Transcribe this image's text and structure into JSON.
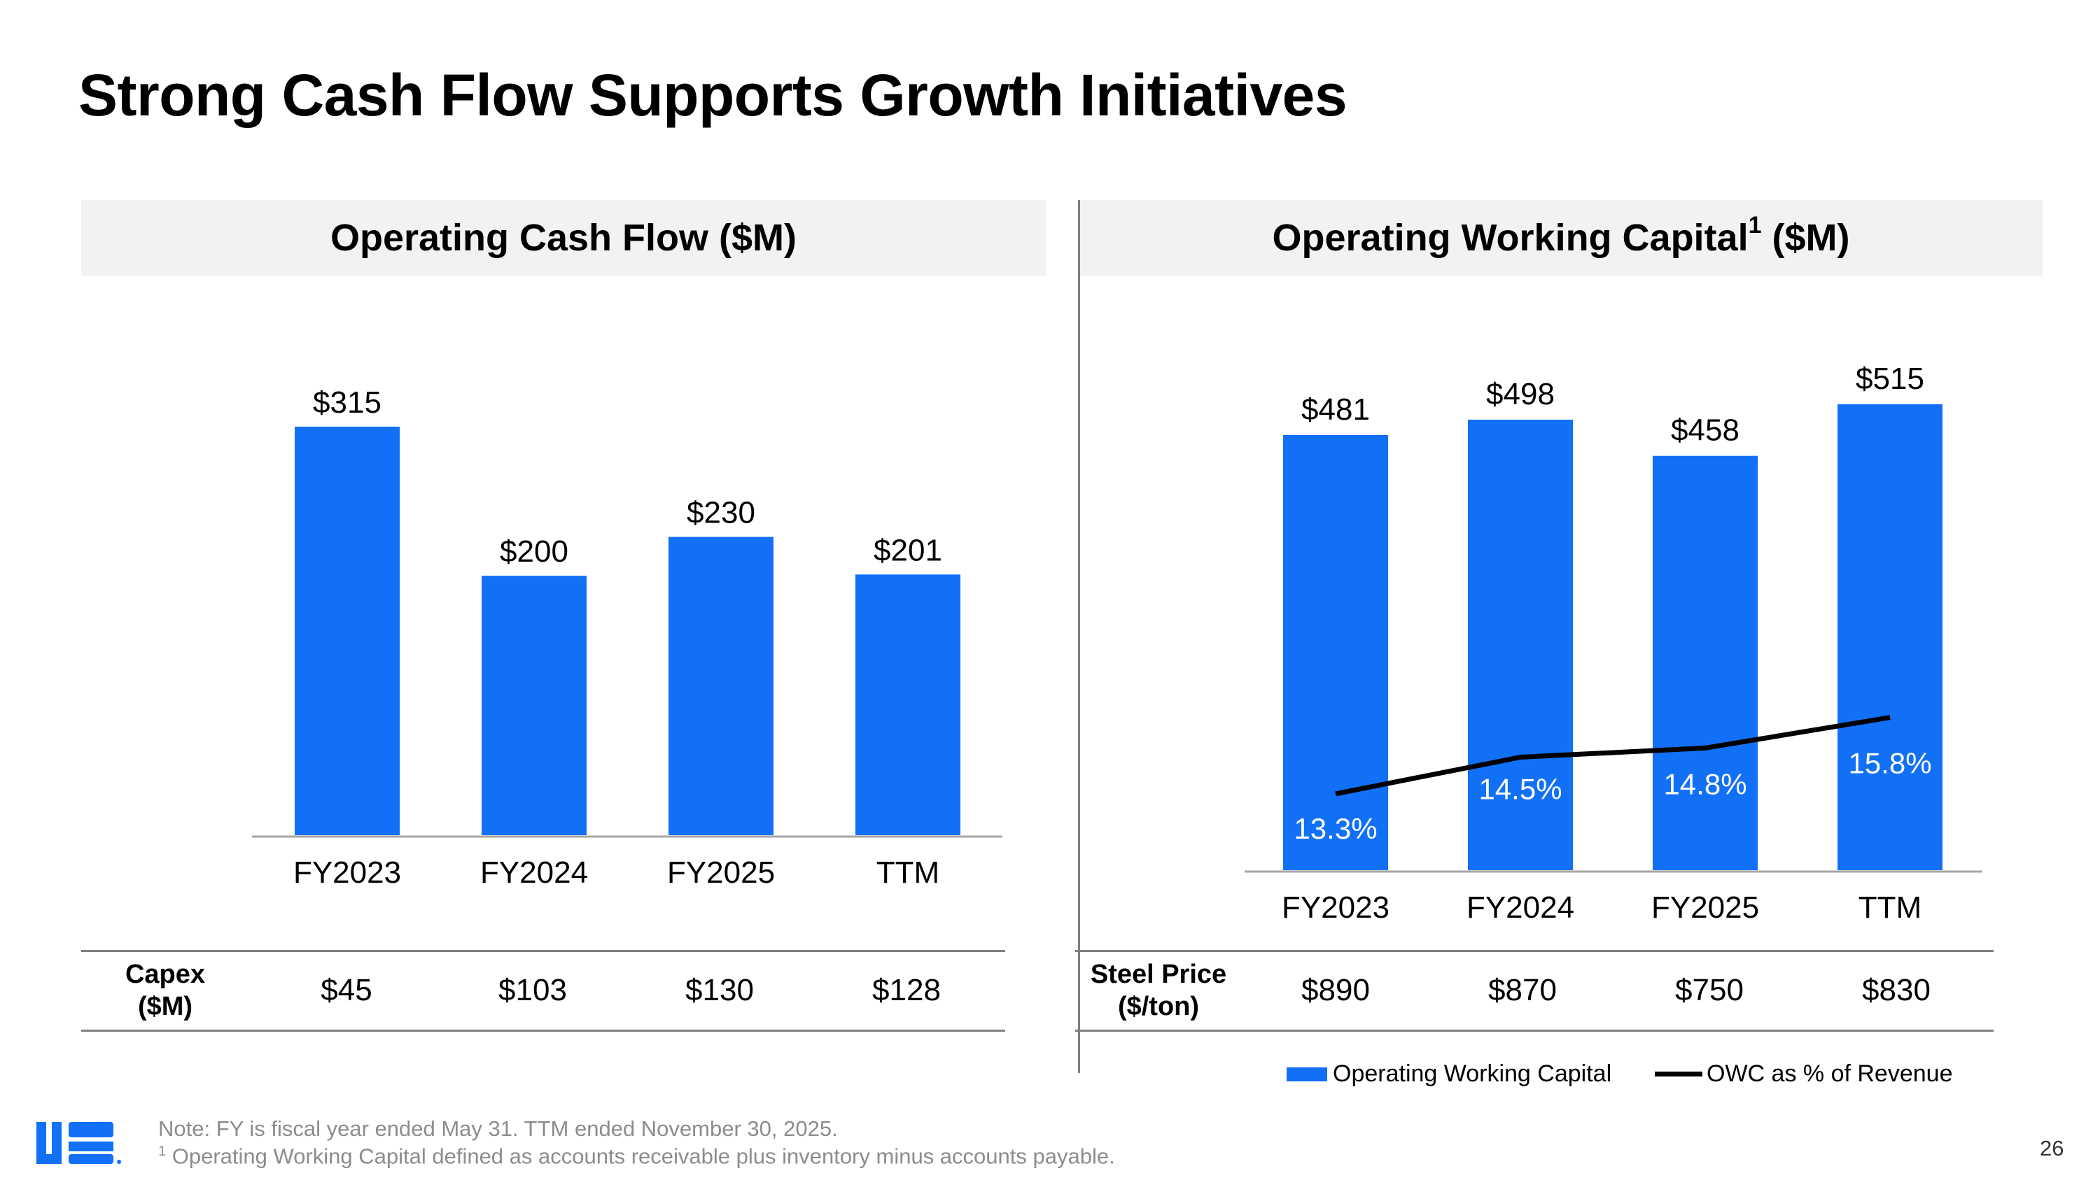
{
  "title": "Strong Cash Flow Supports Growth Initiatives",
  "left_panel": {
    "header": "Operating Cash Flow ($M)",
    "table": {
      "row_label_line1": "Capex",
      "row_label_line2": "($M)",
      "values": [
        "$45",
        "$103",
        "$130",
        "$128"
      ]
    }
  },
  "right_panel": {
    "header": "Operating Working Capital",
    "header_sup": "1",
    "header_suffix": " ($M)",
    "table": {
      "row_label_line1": "Steel Price",
      "row_label_line2": "($/ton)",
      "values": [
        "$890",
        "$870",
        "$750",
        "$830"
      ]
    },
    "legend": {
      "bar_label": "Operating Working Capital",
      "line_label": "OWC as % of Revenue"
    }
  },
  "chart_data": [
    {
      "type": "bar",
      "title": "Operating Cash Flow ($M)",
      "categories": [
        "FY2023",
        "FY2024",
        "FY2025",
        "TTM"
      ],
      "values": [
        315,
        200,
        230,
        201
      ],
      "data_labels": [
        "$315",
        "$200",
        "$230",
        "$201"
      ],
      "ylim": [
        0,
        315
      ],
      "color": "#1270f7"
    },
    {
      "type": "bar+line",
      "title": "Operating Working Capital ($M)",
      "categories": [
        "FY2023",
        "FY2024",
        "FY2025",
        "TTM"
      ],
      "series": [
        {
          "name": "Operating Working Capital",
          "type": "bar",
          "values": [
            481,
            498,
            458,
            515
          ],
          "data_labels": [
            "$481",
            "$498",
            "$458",
            "$515"
          ],
          "color": "#1270f7"
        },
        {
          "name": "OWC as % of Revenue",
          "type": "line",
          "values": [
            13.3,
            14.5,
            14.8,
            15.8
          ],
          "data_labels": [
            "13.3%",
            "14.5%",
            "14.8%",
            "15.8%"
          ],
          "color": "#000000"
        }
      ],
      "ylim": [
        0,
        515
      ]
    }
  ],
  "footer": {
    "note_line1": "Note: FY is fiscal year ended May 31. TTM ended November 30, 2025.",
    "note_line2_sup": "1",
    "note_line2": " Operating Working Capital defined as accounts receivable plus inventory minus accounts payable.",
    "page_number": "26"
  },
  "colors": {
    "accent": "#1270f7",
    "header_bg": "#f2f2f2",
    "rule": "#7f7f7f",
    "note": "#8c8c8c"
  },
  "logo": {
    "icon": "company-logo-icon"
  }
}
